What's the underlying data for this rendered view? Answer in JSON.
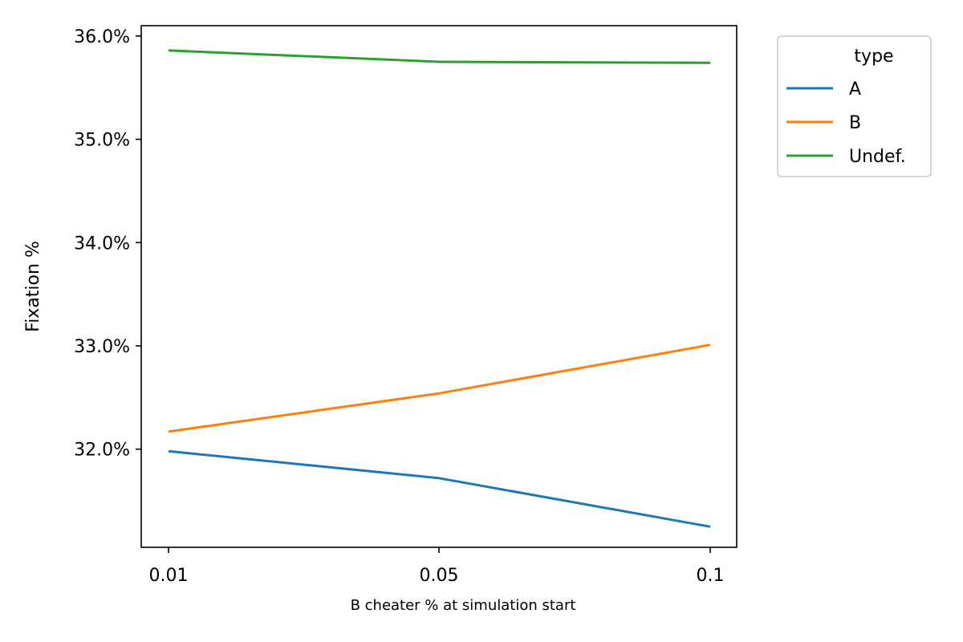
{
  "chart_data": {
    "type": "line",
    "xlabel": "B cheater % at simulation start",
    "ylabel": "Fixation %",
    "categories": [
      "0.01",
      "0.05",
      "0.1"
    ],
    "ylim": [
      31.05,
      36.1
    ],
    "yticks": [
      32.0,
      33.0,
      34.0,
      35.0,
      36.0
    ],
    "ytick_labels": [
      "32.0%",
      "33.0%",
      "34.0%",
      "35.0%",
      "36.0%"
    ],
    "grid": false,
    "legend": {
      "title": "type",
      "placement": "outside-top-right"
    },
    "series": [
      {
        "name": "A",
        "color": "#1f77b4",
        "values": [
          31.98,
          31.72,
          31.25
        ]
      },
      {
        "name": "B",
        "color": "#ff7f0e",
        "values": [
          32.17,
          32.54,
          33.01
        ]
      },
      {
        "name": "Undef.",
        "color": "#2ca02c",
        "values": [
          35.86,
          35.75,
          35.74
        ]
      }
    ]
  }
}
